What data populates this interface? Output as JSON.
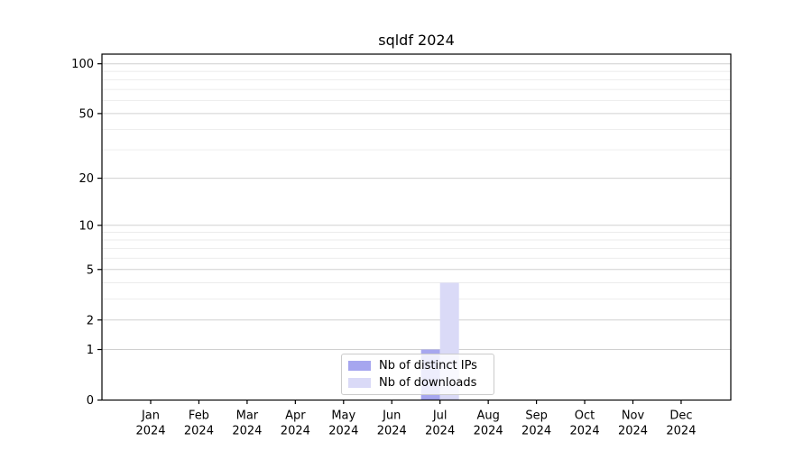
{
  "chart_data": {
    "type": "bar",
    "title": "sqldf 2024",
    "categories": [
      "Jan 2024",
      "Feb 2024",
      "Mar 2024",
      "Apr 2024",
      "May 2024",
      "Jun 2024",
      "Jul 2024",
      "Aug 2024",
      "Sep 2024",
      "Oct 2024",
      "Nov 2024",
      "Dec 2024"
    ],
    "series": [
      {
        "name": "Nb of distinct IPs",
        "color": "#a6a6ef",
        "values": [
          0,
          0,
          0,
          0,
          0,
          0,
          1,
          0,
          0,
          0,
          0,
          0
        ]
      },
      {
        "name": "Nb of downloads",
        "color": "#dadaf7",
        "values": [
          0,
          0,
          0,
          0,
          0,
          0,
          4,
          0,
          0,
          0,
          0,
          0
        ]
      }
    ],
    "y_scale": "log1p",
    "y_major_ticks": [
      0,
      1,
      2,
      5,
      10,
      20,
      50,
      100
    ],
    "y_minor_ticks": [
      3,
      4,
      6,
      7,
      8,
      9,
      30,
      40,
      60,
      70,
      80,
      90
    ],
    "ylim": [
      0,
      115
    ],
    "grid": "horizontal",
    "legend_position": "bottom-center",
    "colors": {
      "major_grid": "#d0d0d0",
      "minor_grid": "#ebebeb",
      "axis": "#000000",
      "tick_text": "#000000",
      "plot_background": "#ffffff"
    }
  }
}
